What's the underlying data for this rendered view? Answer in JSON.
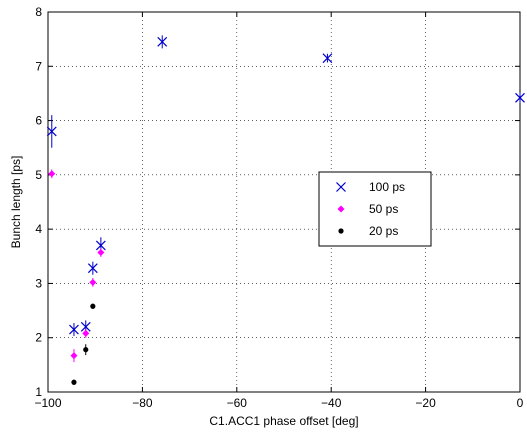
{
  "chart_data": {
    "type": "scatter",
    "title": "",
    "xlabel": "C1.ACC1 phase offset [deg]",
    "ylabel": "Bunch length [ps]",
    "xlim": [
      -100,
      0
    ],
    "ylim": [
      1,
      8
    ],
    "xticks": [
      -100,
      -80,
      -60,
      -40,
      -20,
      0
    ],
    "yticks": [
      1,
      2,
      3,
      4,
      5,
      6,
      7,
      8
    ],
    "xtick_labels": [
      "−100",
      "−80",
      "−60",
      "−40",
      "−20",
      "0"
    ],
    "ytick_labels": [
      "1",
      "2",
      "3",
      "4",
      "5",
      "6",
      "7",
      "8"
    ],
    "grid": true,
    "legend_position": "center-right",
    "series": [
      {
        "name": "100 ps",
        "marker": "x",
        "color": "#0000cc",
        "x": [
          -99.2,
          -94.5,
          -92,
          -90.5,
          -88.8,
          -75.8,
          -40.8,
          0
        ],
        "y": [
          5.8,
          2.15,
          2.2,
          3.28,
          3.7,
          7.45,
          7.15,
          6.42
        ],
        "err": [
          0.3,
          0.12,
          0.12,
          0.12,
          0.15,
          0.12,
          0.08,
          0.1
        ]
      },
      {
        "name": "50 ps",
        "marker": "diamond",
        "color": "#ff00ff",
        "x": [
          -99.2,
          -94.5,
          -92,
          -90.5,
          -88.8
        ],
        "y": [
          5.02,
          1.67,
          2.08,
          3.02,
          3.57
        ],
        "err": [
          0.08,
          0.12,
          0.08,
          0.08,
          0.08
        ]
      },
      {
        "name": "20 ps",
        "marker": "dot",
        "color": "#000000",
        "x": [
          -94.5,
          -92,
          -90.5
        ],
        "y": [
          1.18,
          1.78,
          2.58
        ],
        "err": [
          0.05,
          0.1,
          0.05
        ]
      }
    ]
  }
}
